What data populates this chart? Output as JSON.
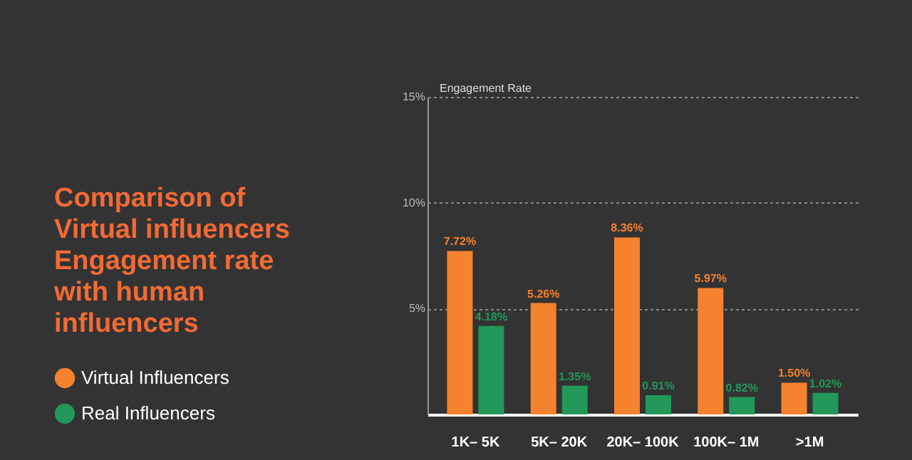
{
  "chart_data": {
    "type": "bar",
    "title": [
      "Comparison of",
      "Virtual influencers",
      "Engagement rate",
      "with human",
      "influencers"
    ],
    "ylabel": "Engagement Rate",
    "categories": [
      "1K– 5K",
      "5K– 20K",
      "20K– 100K",
      "100K– 1M",
      ">1M"
    ],
    "series": [
      {
        "name": "Virtual Influencers",
        "color": "#f5822f",
        "values": [
          7.72,
          5.26,
          8.36,
          5.97,
          1.5
        ],
        "value_labels": [
          "7.72%",
          "5.26%",
          "8.36%",
          "5.97%",
          "1.50%"
        ]
      },
      {
        "name": "Real Influencers",
        "color": "#22985a",
        "values": [
          4.18,
          1.35,
          0.91,
          0.82,
          1.02
        ],
        "value_labels": [
          "4.18%",
          "1.35%",
          "0.91%",
          "0.82%",
          "1.02%"
        ]
      }
    ],
    "ylim": [
      0,
      15
    ],
    "yticks": [
      {
        "value": 5,
        "label": "5%"
      },
      {
        "value": 10,
        "label": "10%"
      },
      {
        "value": 15,
        "label": "15%"
      }
    ],
    "grid": "y",
    "legend": "left"
  }
}
